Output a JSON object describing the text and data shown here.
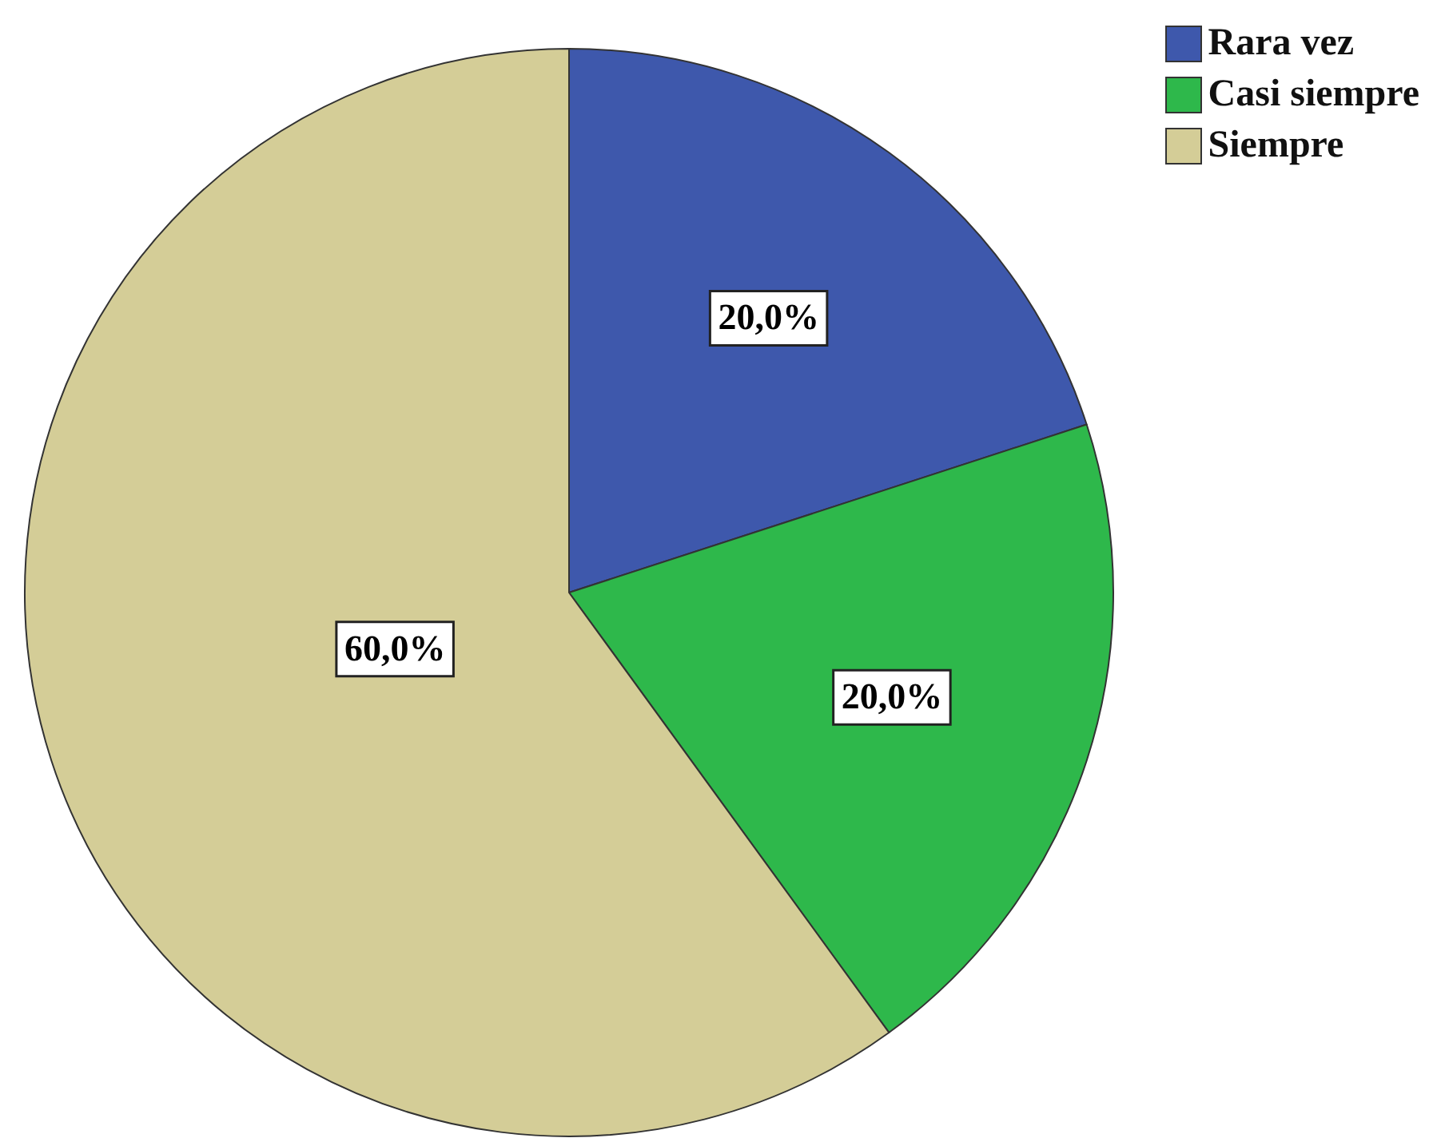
{
  "chart_data": {
    "type": "pie",
    "categories": [
      "Rara vez",
      "Casi siempre",
      "Siempre"
    ],
    "values": [
      20,
      20,
      60
    ],
    "colors": [
      "#3e58ac",
      "#2eb84b",
      "#d4cd97"
    ],
    "value_labels": [
      "20,0%",
      "20,0%",
      "60,0%"
    ],
    "legend": "top right"
  }
}
